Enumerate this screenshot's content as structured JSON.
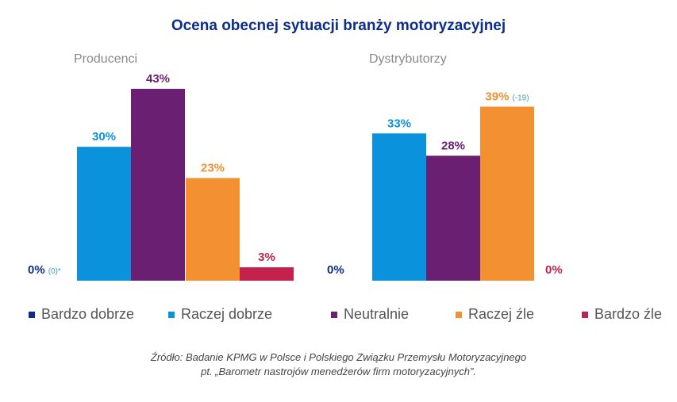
{
  "title": "Ocena obecnej sytuacji branży motoryzacyjnej",
  "legend": [
    {
      "label": "Bardzo dobrze",
      "color": "#0d2d8a"
    },
    {
      "label": "Raczej dobrze",
      "color": "#0a92dc"
    },
    {
      "label": "Neutralnie",
      "color": "#6b1f73"
    },
    {
      "label": "Raczej źle",
      "color": "#f39132"
    },
    {
      "label": "Bardzo źle",
      "color": "#c4224e"
    }
  ],
  "source": {
    "line1": "Źródło: Badanie KPMG w Polsce i Polskiego Związku Przemysłu Motoryzacyjnego",
    "line2": "pt. „Barometr nastrojów menedżerów firm motoryzacyjnych”."
  },
  "chart_data": [
    {
      "type": "bar",
      "title": "Producenci",
      "categories": [
        "Bardzo dobrze",
        "Raczej dobrze",
        "Neutralnie",
        "Raczej źle",
        "Bardzo źle"
      ],
      "values": [
        0,
        30,
        43,
        23,
        3
      ],
      "value_labels": [
        "0%",
        "30%",
        "43%",
        "23%",
        "3%"
      ],
      "annotations": [
        "(0)*",
        "",
        "",
        "",
        ""
      ],
      "ylim": [
        0,
        45
      ]
    },
    {
      "type": "bar",
      "title": "Dystrybutorzy",
      "categories": [
        "Bardzo dobrze",
        "Raczej dobrze",
        "Neutralnie",
        "Raczej źle",
        "Bardzo źle"
      ],
      "values": [
        0,
        33,
        28,
        39,
        0
      ],
      "value_labels": [
        "0%",
        "33%",
        "28%",
        "39%",
        "0%"
      ],
      "annotations": [
        "",
        "",
        "",
        "(-19)",
        ""
      ],
      "ylim": [
        0,
        45
      ]
    }
  ]
}
